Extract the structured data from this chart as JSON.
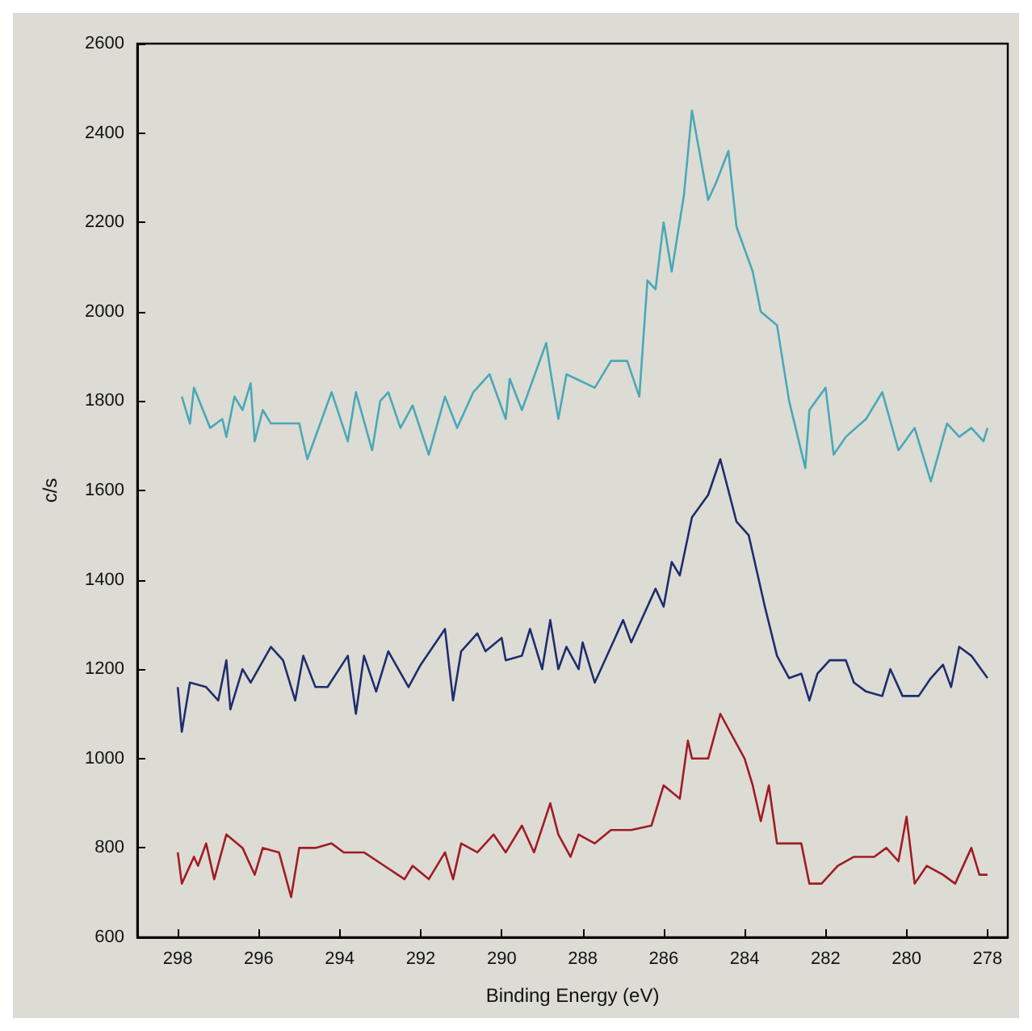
{
  "chart_data": {
    "type": "line",
    "xlabel": "Binding Energy (eV)",
    "ylabel": "c/s",
    "xlim": [
      299,
      277.5
    ],
    "xticks": [
      298,
      296,
      294,
      292,
      290,
      288,
      286,
      284,
      282,
      280,
      278
    ],
    "ylim": [
      600,
      2600
    ],
    "yticks": [
      600,
      800,
      1000,
      1200,
      1400,
      1600,
      1800,
      2000,
      2200,
      2400,
      2600
    ],
    "grid": false,
    "marker": "none",
    "line_style": "solid",
    "series": [
      {
        "color": "#4aa8b8",
        "x": [
          297.9,
          297.7,
          297.6,
          297.2,
          296.9,
          296.8,
          296.6,
          296.4,
          296.2,
          296.1,
          295.9,
          295.7,
          295.0,
          294.8,
          294.2,
          293.8,
          293.6,
          293.2,
          293.0,
          292.8,
          292.5,
          292.2,
          291.8,
          291.4,
          291.1,
          290.7,
          290.3,
          289.9,
          289.8,
          289.5,
          289.3,
          288.9,
          288.8,
          288.6,
          288.4,
          287.7,
          287.3,
          286.9,
          286.6,
          286.4,
          286.2,
          286.0,
          285.8,
          285.5,
          285.3,
          284.9,
          284.7,
          284.4,
          284.2,
          283.8,
          283.6,
          283.2,
          282.9,
          282.5,
          282.4,
          282.0,
          281.8,
          281.5,
          281.0,
          280.6,
          280.2,
          279.8,
          279.4,
          279.0,
          278.7,
          278.4,
          278.1,
          278.0
        ],
        "values": [
          1810,
          1750,
          1830,
          1740,
          1760,
          1720,
          1810,
          1780,
          1840,
          1710,
          1780,
          1750,
          1750,
          1670,
          1820,
          1710,
          1820,
          1690,
          1800,
          1820,
          1740,
          1790,
          1680,
          1810,
          1740,
          1820,
          1860,
          1760,
          1850,
          1780,
          1830,
          1930,
          1870,
          1760,
          1860,
          1830,
          1890,
          1890,
          1810,
          2070,
          2050,
          2200,
          2090,
          2260,
          2450,
          2250,
          2290,
          2360,
          2190,
          2090,
          2000,
          1970,
          1800,
          1650,
          1780,
          1830,
          1680,
          1720,
          1760,
          1820,
          1690,
          1740,
          1620,
          1750,
          1720,
          1740,
          1710,
          1740
        ]
      },
      {
        "color": "#1f2d6e",
        "x": [
          298.0,
          297.9,
          297.7,
          297.3,
          297.0,
          296.8,
          296.7,
          296.4,
          296.2,
          295.7,
          295.4,
          295.1,
          294.9,
          294.6,
          294.3,
          293.8,
          293.6,
          293.4,
          293.1,
          292.8,
          292.3,
          292.0,
          291.4,
          291.2,
          291.0,
          290.6,
          290.4,
          290.0,
          289.9,
          289.5,
          289.3,
          289.0,
          288.8,
          288.6,
          288.4,
          288.1,
          288.0,
          287.7,
          287.0,
          286.8,
          286.2,
          286.0,
          285.8,
          285.6,
          285.3,
          284.9,
          284.6,
          284.2,
          283.9,
          283.5,
          283.2,
          282.9,
          282.6,
          282.4,
          282.2,
          281.9,
          281.5,
          281.3,
          281.0,
          280.6,
          280.4,
          280.1,
          279.7,
          279.4,
          279.1,
          278.9,
          278.7,
          278.4,
          278.0
        ],
        "values": [
          1160,
          1060,
          1170,
          1160,
          1130,
          1220,
          1110,
          1200,
          1170,
          1250,
          1220,
          1130,
          1230,
          1160,
          1160,
          1230,
          1100,
          1230,
          1150,
          1240,
          1160,
          1210,
          1290,
          1130,
          1240,
          1280,
          1240,
          1270,
          1220,
          1230,
          1290,
          1200,
          1310,
          1200,
          1250,
          1200,
          1260,
          1170,
          1310,
          1260,
          1380,
          1340,
          1440,
          1410,
          1540,
          1590,
          1670,
          1530,
          1500,
          1340,
          1230,
          1180,
          1190,
          1130,
          1190,
          1220,
          1220,
          1170,
          1150,
          1140,
          1200,
          1140,
          1140,
          1180,
          1210,
          1160,
          1250,
          1230,
          1180
        ]
      },
      {
        "color": "#a01c24",
        "x": [
          298.0,
          297.9,
          297.6,
          297.5,
          297.3,
          297.1,
          296.8,
          296.4,
          296.1,
          295.9,
          295.5,
          295.2,
          295.0,
          294.6,
          294.2,
          293.9,
          293.4,
          292.9,
          292.4,
          292.2,
          291.8,
          291.4,
          291.2,
          291.0,
          290.6,
          290.2,
          289.9,
          289.5,
          289.2,
          288.8,
          288.6,
          288.3,
          288.1,
          287.7,
          287.3,
          286.8,
          286.3,
          286.0,
          285.6,
          285.4,
          285.3,
          284.9,
          284.6,
          284.0,
          283.8,
          283.6,
          283.4,
          283.2,
          282.9,
          282.6,
          282.4,
          282.1,
          281.7,
          281.3,
          280.8,
          280.5,
          280.2,
          280.0,
          279.8,
          279.5,
          279.1,
          278.8,
          278.4,
          278.2,
          278.0
        ],
        "values": [
          790,
          720,
          780,
          760,
          810,
          730,
          830,
          800,
          740,
          800,
          790,
          690,
          800,
          800,
          810,
          790,
          790,
          760,
          730,
          760,
          730,
          790,
          730,
          810,
          790,
          830,
          790,
          850,
          790,
          900,
          830,
          780,
          830,
          810,
          840,
          840,
          850,
          940,
          910,
          1040,
          1000,
          1000,
          1100,
          1000,
          940,
          860,
          940,
          810,
          810,
          810,
          720,
          720,
          760,
          780,
          780,
          800,
          770,
          870,
          720,
          760,
          740,
          720,
          800,
          740,
          740
        ]
      }
    ]
  }
}
